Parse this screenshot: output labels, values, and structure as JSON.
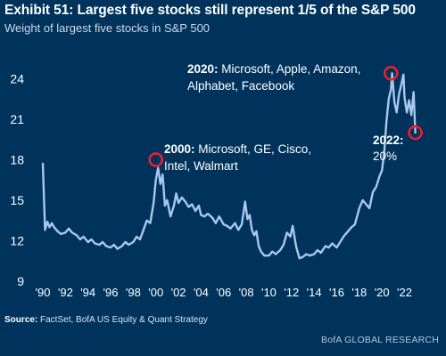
{
  "chart_data": {
    "type": "line",
    "title": "Exhibit 51: Largest five stocks still represent 1/5 of the S&P 500",
    "subtitle": "Weight of largest five stocks in S&P 500",
    "xlabel": "",
    "ylabel": "",
    "xlim": [
      1990,
      2023.3
    ],
    "ylim": [
      9,
      26
    ],
    "y_ticks": [
      9,
      12,
      15,
      18,
      21,
      24
    ],
    "x_tick_values": [
      1990,
      1992,
      1994,
      1996,
      1998,
      2000,
      2002,
      2004,
      2006,
      2008,
      2010,
      2012,
      2014,
      2016,
      2018,
      2020,
      2022
    ],
    "x_tick_labels": [
      "'90",
      "'92",
      "'94",
      "'96",
      "'98",
      "'00",
      "'02",
      "'04",
      "'06",
      "'08",
      "'10",
      "'12",
      "'14",
      "'16",
      "'18",
      "'20",
      "'22"
    ],
    "grid": false,
    "line_color": "#a9c6ee",
    "highlight_color": "#e8202a",
    "series": [
      {
        "x": [
          1990.0,
          1990.2,
          1990.4,
          1990.6,
          1990.8,
          1991.0,
          1991.3,
          1991.6,
          1992.0,
          1992.3,
          1992.6,
          1993.0,
          1993.3,
          1993.6,
          1994.0,
          1994.3,
          1994.6,
          1995.0,
          1995.3,
          1995.6,
          1996.0,
          1996.3,
          1996.6,
          1997.0,
          1997.3,
          1997.6,
          1998.0,
          1998.3,
          1998.6,
          1998.9,
          1999.2,
          1999.5,
          1999.8,
          2000.0,
          2000.2,
          2000.4,
          2000.6,
          2000.8,
          2001.0,
          2001.3,
          2001.6,
          2001.8,
          2002.0,
          2002.3,
          2002.6,
          2002.9,
          2003.2,
          2003.5,
          2003.8,
          2004.0,
          2004.3,
          2004.6,
          2005.0,
          2005.3,
          2005.6,
          2006.0,
          2006.3,
          2006.6,
          2007.0,
          2007.3,
          2007.6,
          2007.9,
          2008.1,
          2008.3,
          2008.5,
          2008.7,
          2008.9,
          2009.1,
          2009.3,
          2009.6,
          2010.0,
          2010.3,
          2010.6,
          2011.0,
          2011.3,
          2011.6,
          2011.9,
          2012.1,
          2012.4,
          2012.7,
          2013.0,
          2013.3,
          2013.6,
          2014.0,
          2014.3,
          2014.6,
          2015.0,
          2015.3,
          2015.6,
          2016.0,
          2016.3,
          2016.6,
          2017.0,
          2017.3,
          2017.6,
          2018.0,
          2018.3,
          2018.6,
          2018.9,
          2019.2,
          2019.5,
          2019.8,
          2020.0,
          2020.2,
          2020.4,
          2020.6,
          2020.8,
          2020.9,
          2021.1,
          2021.3,
          2021.5,
          2021.7,
          2021.9,
          2022.0,
          2022.2,
          2022.4,
          2022.6,
          2022.8,
          2022.95
        ],
        "values": [
          17.7,
          12.8,
          13.4,
          13.0,
          13.3,
          13.0,
          12.7,
          12.5,
          12.6,
          12.9,
          12.6,
          12.4,
          12.1,
          12.3,
          11.9,
          12.1,
          11.8,
          11.7,
          11.9,
          11.6,
          11.5,
          11.7,
          11.4,
          11.6,
          11.9,
          11.7,
          11.9,
          12.3,
          12.1,
          12.8,
          13.5,
          13.3,
          14.8,
          16.5,
          17.4,
          16.2,
          16.9,
          14.6,
          15.0,
          13.8,
          14.6,
          15.5,
          14.8,
          15.2,
          14.9,
          14.5,
          14.7,
          14.2,
          14.6,
          13.9,
          13.8,
          14.0,
          13.7,
          13.3,
          13.8,
          13.2,
          13.1,
          12.9,
          13.3,
          12.8,
          13.2,
          14.9,
          13.6,
          13.9,
          12.8,
          12.4,
          12.7,
          11.6,
          11.2,
          10.9,
          10.9,
          11.2,
          11.0,
          11.3,
          11.7,
          12.6,
          12.3,
          13.1,
          11.6,
          10.7,
          10.8,
          11.0,
          10.9,
          11.0,
          11.3,
          11.1,
          11.6,
          11.5,
          11.8,
          11.5,
          11.9,
          12.3,
          12.7,
          13.0,
          13.2,
          14.4,
          15.0,
          14.7,
          14.4,
          15.6,
          16.0,
          16.8,
          17.2,
          18.5,
          20.8,
          22.5,
          23.2,
          24.4,
          22.3,
          21.5,
          22.8,
          23.5,
          24.3,
          22.6,
          21.5,
          22.4,
          21.3,
          23.0,
          20.0
        ]
      }
    ],
    "annotations": [
      {
        "id": "a2000",
        "lines": [
          "2000: Microsoft,  GE, Cisco,",
          "Intel,  Walmart"
        ],
        "x": 2000.0,
        "y": 18.0
      },
      {
        "id": "a2020",
        "lines": [
          "2020: Microsoft,  Apple, Amazon,",
          "Alphabet,  Facebook"
        ],
        "x": 2020.8,
        "y": 24.4
      },
      {
        "id": "a2022",
        "lines": [
          "2022:",
          "20%"
        ],
        "x": 2022.95,
        "y": 20.0
      }
    ]
  },
  "footer": {
    "source_label": "Source:",
    "source_text": " FactSet, BofA US Equity & Quant Strategy",
    "branding": "BofA GLOBAL RESEARCH"
  }
}
